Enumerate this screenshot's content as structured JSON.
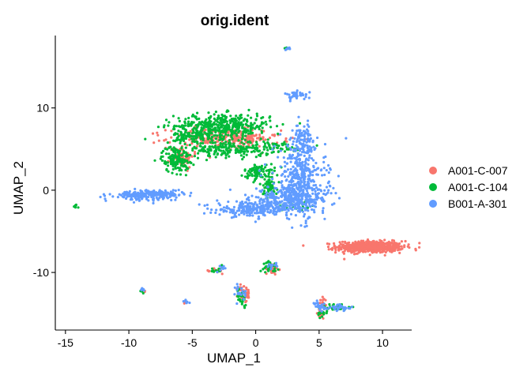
{
  "chart_data": {
    "type": "scatter",
    "title": "orig.ident",
    "xlabel": "UMAP_1",
    "ylabel": "UMAP_2",
    "xlim": [
      -15.8,
      12.3
    ],
    "ylim": [
      -17.0,
      18.8
    ],
    "xticks": [
      -15,
      -10,
      -5,
      0,
      5,
      10
    ],
    "yticks": [
      -10,
      0,
      10
    ],
    "xtick_labels": [
      "-15",
      "-10",
      "-5",
      "0",
      "5",
      "10"
    ],
    "ytick_labels": [
      "-10",
      "0",
      "10"
    ],
    "grid": false,
    "legend_position": "right",
    "series": [
      {
        "name": "A001-C-007",
        "color": "#F8766D",
        "clusters": [
          {
            "cx": 9.0,
            "cy": -6.9,
            "sx": 1.3,
            "sy": 0.35,
            "n": 620
          },
          {
            "cx": -2.5,
            "cy": 6.3,
            "sx": 2.2,
            "sy": 0.6,
            "n": 220
          },
          {
            "cx": -5.8,
            "cy": 4.2,
            "sx": 0.45,
            "sy": 0.7,
            "n": 60
          },
          {
            "cx": -0.6,
            "cy": 6.1,
            "sx": 0.5,
            "sy": 0.4,
            "n": 40
          },
          {
            "cx": 1.3,
            "cy": -9.6,
            "sx": 0.25,
            "sy": 0.35,
            "n": 30
          },
          {
            "cx": -3.0,
            "cy": -9.8,
            "sx": 0.25,
            "sy": 0.2,
            "n": 15
          },
          {
            "cx": -0.9,
            "cy": -12.6,
            "sx": 0.25,
            "sy": 0.55,
            "n": 40
          },
          {
            "cx": 5.1,
            "cy": -15.1,
            "sx": 0.2,
            "sy": 0.3,
            "n": 22
          },
          {
            "cx": 5.4,
            "cy": -13.6,
            "sx": 0.2,
            "sy": 0.3,
            "n": 15
          },
          {
            "cx": -5.6,
            "cy": -13.6,
            "sx": 0.12,
            "sy": 0.1,
            "n": 5
          },
          {
            "cx": -8.8,
            "cy": -12.2,
            "sx": 0.1,
            "sy": 0.1,
            "n": 4
          }
        ]
      },
      {
        "name": "A001-C-104",
        "color": "#00BA38",
        "clusters": [
          {
            "cx": -2.6,
            "cy": 7.8,
            "sx": 1.9,
            "sy": 0.75,
            "n": 420
          },
          {
            "cx": -2.0,
            "cy": 5.0,
            "sx": 1.6,
            "sy": 0.5,
            "n": 200
          },
          {
            "cx": -6.3,
            "cy": 3.8,
            "sx": 0.55,
            "sy": 0.8,
            "n": 150
          },
          {
            "cx": -5.0,
            "cy": 6.5,
            "sx": 0.7,
            "sy": 0.5,
            "n": 90
          },
          {
            "cx": 0.3,
            "cy": 2.2,
            "sx": 0.6,
            "sy": 0.5,
            "n": 90
          },
          {
            "cx": 1.1,
            "cy": 0.4,
            "sx": 0.3,
            "sy": 0.5,
            "n": 60
          },
          {
            "cx": 1.5,
            "cy": 5.2,
            "sx": 1.2,
            "sy": 0.4,
            "n": 45
          },
          {
            "cx": 1.2,
            "cy": -9.3,
            "sx": 0.3,
            "sy": 0.3,
            "n": 30
          },
          {
            "cx": -1.1,
            "cy": -13.0,
            "sx": 0.2,
            "sy": 0.5,
            "n": 28
          },
          {
            "cx": 6.4,
            "cy": -14.2,
            "sx": 0.6,
            "sy": 0.2,
            "n": 40
          },
          {
            "cx": 5.3,
            "cy": -15.0,
            "sx": 0.2,
            "sy": 0.25,
            "n": 12
          },
          {
            "cx": -14.2,
            "cy": -2.0,
            "sx": 0.08,
            "sy": 0.12,
            "n": 8
          },
          {
            "cx": 2.4,
            "cy": 17.2,
            "sx": 0.12,
            "sy": 0.08,
            "n": 8
          },
          {
            "cx": -9.0,
            "cy": -12.3,
            "sx": 0.12,
            "sy": 0.12,
            "n": 6
          },
          {
            "cx": 3.3,
            "cy": -1.8,
            "sx": 0.8,
            "sy": 0.4,
            "n": 25
          },
          {
            "cx": -3.0,
            "cy": -9.7,
            "sx": 0.25,
            "sy": 0.2,
            "n": 10
          }
        ]
      },
      {
        "name": "B001-A-301",
        "color": "#619CFF",
        "clusters": [
          {
            "cx": 3.5,
            "cy": 1.3,
            "sx": 1.0,
            "sy": 2.3,
            "n": 420
          },
          {
            "cx": 2.8,
            "cy": -1.1,
            "sx": 1.6,
            "sy": 0.7,
            "n": 280
          },
          {
            "cx": -0.3,
            "cy": -2.3,
            "sx": 1.4,
            "sy": 0.45,
            "n": 220
          },
          {
            "cx": 3.7,
            "cy": 6.2,
            "sx": 0.35,
            "sy": 0.9,
            "n": 80
          },
          {
            "cx": -9.2,
            "cy": -0.6,
            "sx": 1.1,
            "sy": 0.28,
            "n": 150
          },
          {
            "cx": -7.2,
            "cy": -0.4,
            "sx": 0.8,
            "sy": 0.25,
            "n": 80
          },
          {
            "cx": 3.3,
            "cy": 11.5,
            "sx": 0.45,
            "sy": 0.25,
            "n": 40
          },
          {
            "cx": 6.6,
            "cy": -14.3,
            "sx": 0.5,
            "sy": 0.2,
            "n": 35
          },
          {
            "cx": 5.1,
            "cy": -14.1,
            "sx": 0.25,
            "sy": 0.4,
            "n": 25
          },
          {
            "cx": -1.2,
            "cy": -12.4,
            "sx": 0.2,
            "sy": 0.5,
            "n": 20
          },
          {
            "cx": 1.3,
            "cy": -9.2,
            "sx": 0.2,
            "sy": 0.2,
            "n": 12
          },
          {
            "cx": -2.6,
            "cy": -9.5,
            "sx": 0.12,
            "sy": 0.3,
            "n": 8
          },
          {
            "cx": -5.5,
            "cy": -13.6,
            "sx": 0.15,
            "sy": 0.1,
            "n": 8
          },
          {
            "cx": -8.9,
            "cy": -12.0,
            "sx": 0.1,
            "sy": 0.1,
            "n": 5
          },
          {
            "cx": 2.5,
            "cy": 17.2,
            "sx": 0.1,
            "sy": 0.08,
            "n": 6
          }
        ]
      }
    ]
  }
}
